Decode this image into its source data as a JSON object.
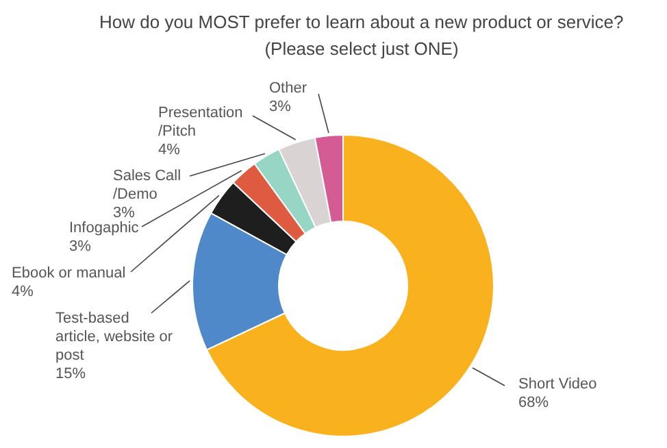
{
  "chart_data": {
    "type": "donut",
    "title": "How do you MOST prefer to learn about a new product or service?\n(Please select just ONE)",
    "categories": [
      "Short Video",
      "Test-based\narticle, website or\npost",
      "Ebook or manual",
      "Infogaphic",
      "Sales Call\n/Demo",
      "Presentation\n/Pitch",
      "Other"
    ],
    "values": [
      68,
      15,
      4,
      3,
      3,
      4,
      3
    ],
    "value_labels": [
      "68%",
      "15%",
      "4%",
      "3%",
      "3%",
      "4%",
      "3%"
    ],
    "colors": [
      "#f9b21d",
      "#4f89c9",
      "#1e1e1e",
      "#de5b41",
      "#97d5c5",
      "#d9d3d4",
      "#d45b94"
    ]
  }
}
